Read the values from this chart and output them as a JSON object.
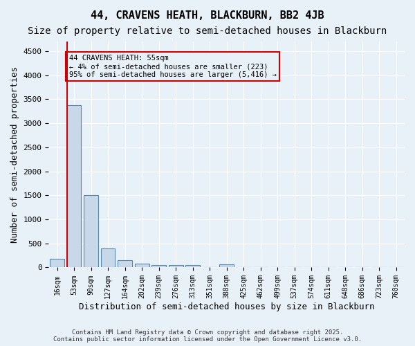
{
  "title": "44, CRAVENS HEATH, BLACKBURN, BB2 4JB",
  "subtitle": "Size of property relative to semi-detached houses in Blackburn",
  "xlabel": "Distribution of semi-detached houses by size in Blackburn",
  "ylabel": "Number of semi-detached properties",
  "footer": "Contains HM Land Registry data © Crown copyright and database right 2025.\nContains public sector information licensed under the Open Government Licence v3.0.",
  "bins": [
    "16sqm",
    "53sqm",
    "90sqm",
    "127sqm",
    "164sqm",
    "202sqm",
    "239sqm",
    "276sqm",
    "313sqm",
    "351sqm",
    "388sqm",
    "425sqm",
    "462sqm",
    "499sqm",
    "537sqm",
    "574sqm",
    "611sqm",
    "648sqm",
    "686sqm",
    "723sqm",
    "760sqm"
  ],
  "values": [
    185,
    3380,
    1500,
    390,
    150,
    80,
    50,
    50,
    50,
    0,
    60,
    0,
    0,
    0,
    0,
    0,
    0,
    0,
    0,
    0,
    0
  ],
  "bar_color": "#c8d8e8",
  "bar_edge_color": "#5588aa",
  "vline_x_index": 1,
  "vline_color": "#cc0000",
  "annotation_text": "44 CRAVENS HEATH: 55sqm\n← 4% of semi-detached houses are smaller (223)\n95% of semi-detached houses are larger (5,416) →",
  "annotation_box_color": "#cc0000",
  "ylim": [
    0,
    4700
  ],
  "yticks": [
    0,
    500,
    1000,
    1500,
    2000,
    2500,
    3000,
    3500,
    4000,
    4500
  ],
  "bg_color": "#e8f0f8",
  "grid_color": "#ffffff",
  "title_fontsize": 11,
  "subtitle_fontsize": 10,
  "label_fontsize": 9
}
